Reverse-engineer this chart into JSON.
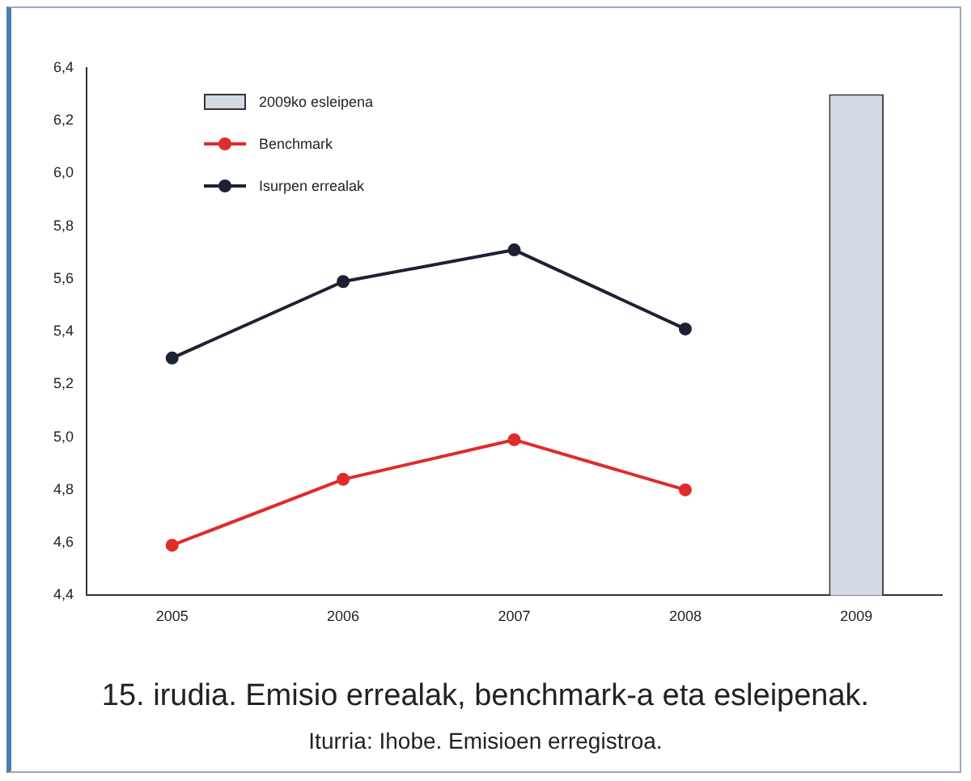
{
  "chart_data": {
    "type": "line",
    "title": "15. irudia. Emisio errealak, benchmark-a eta esleipenak.",
    "annotations": [
      "Iturria: Ihobe. Emisioen erregistroa."
    ],
    "categories": [
      "2005",
      "2006",
      "2007",
      "2008",
      "2009"
    ],
    "series": [
      {
        "name": "2009ko esleipena",
        "type": "bar",
        "color": "#d3dae3",
        "values": [
          null,
          null,
          null,
          null,
          6.3
        ]
      },
      {
        "name": "Benchmark",
        "color": "#e02b2b",
        "values": [
          4.59,
          4.84,
          4.99,
          4.8,
          null
        ]
      },
      {
        "name": "Isurpen errealak",
        "color": "#1c2233",
        "values": [
          5.3,
          5.59,
          5.71,
          5.41,
          null
        ]
      }
    ],
    "ylim": [
      4.4,
      6.4
    ],
    "yticks": [
      {
        "value": 4.4,
        "label": "4,4"
      },
      {
        "value": 4.6,
        "label": "4,6"
      },
      {
        "value": 4.8,
        "label": "4,8"
      },
      {
        "value": 5.0,
        "label": "5,0"
      },
      {
        "value": 5.2,
        "label": "5,2"
      },
      {
        "value": 5.4,
        "label": "5,4"
      },
      {
        "value": 5.6,
        "label": "5,6"
      },
      {
        "value": 5.8,
        "label": "5,8"
      },
      {
        "value": 6.0,
        "label": "6,0"
      },
      {
        "value": 6.2,
        "label": "6,2"
      },
      {
        "value": 6.4,
        "label": "6,4"
      }
    ],
    "grid": false,
    "legend": "top left",
    "marker": "circle",
    "line_style": "solid"
  }
}
